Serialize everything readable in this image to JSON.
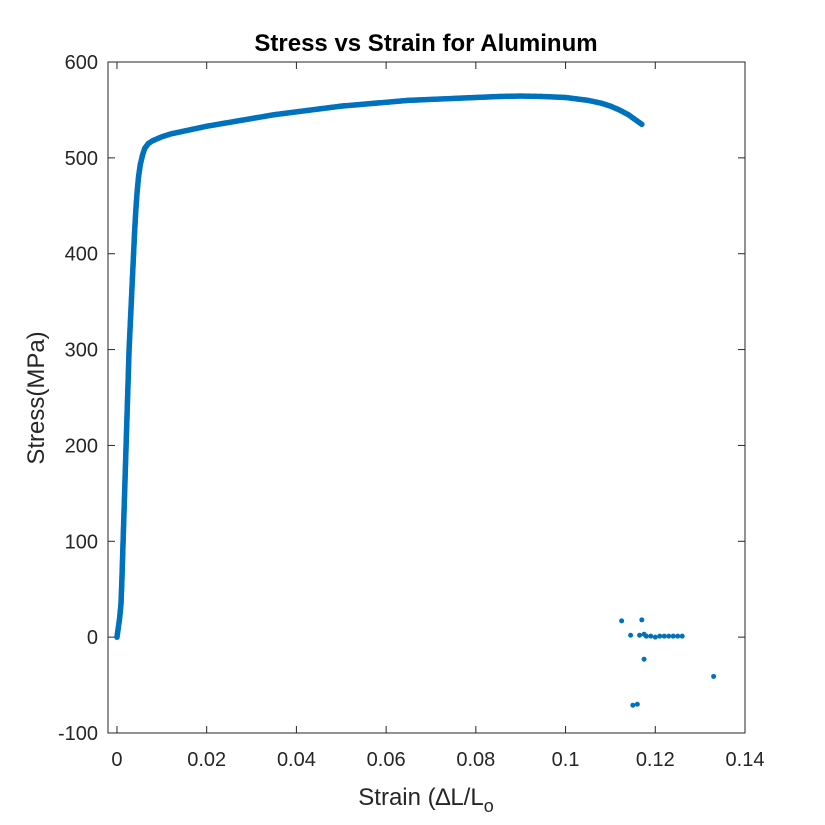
{
  "chart_data": {
    "type": "scatter",
    "title": "Stress vs Strain for Aluminum",
    "xlabel": "Strain (∆L/L",
    "xlabel_subscript": "o",
    "ylabel": "Stress(MPa)",
    "xlim": [
      -0.002,
      0.14
    ],
    "ylim": [
      -100,
      600
    ],
    "xticks": [
      0,
      0.02,
      0.04,
      0.06,
      0.08,
      0.1,
      0.12,
      0.14
    ],
    "xtick_labels": [
      "0",
      "0.02",
      "0.04",
      "0.06",
      "0.08",
      "0.1",
      "0.12",
      "0.14"
    ],
    "yticks": [
      -100,
      0,
      100,
      200,
      300,
      400,
      500,
      600
    ],
    "ytick_labels": [
      "-100",
      "0",
      "100",
      "200",
      "300",
      "400",
      "500",
      "600"
    ],
    "grid": false,
    "legend": "none",
    "color": "#0072BD",
    "series": [
      {
        "points": [
          [
            0.0,
            0
          ],
          [
            0.0003,
            10
          ],
          [
            0.0006,
            20
          ],
          [
            0.0009,
            35
          ],
          [
            0.0011,
            60
          ],
          [
            0.0013,
            90
          ],
          [
            0.0015,
            120
          ],
          [
            0.0017,
            150
          ],
          [
            0.0019,
            180
          ],
          [
            0.0021,
            210
          ],
          [
            0.0023,
            240
          ],
          [
            0.0025,
            270
          ],
          [
            0.0027,
            300
          ],
          [
            0.003,
            330
          ],
          [
            0.0033,
            360
          ],
          [
            0.0036,
            390
          ],
          [
            0.0039,
            420
          ],
          [
            0.0042,
            445
          ],
          [
            0.0045,
            465
          ],
          [
            0.0048,
            480
          ],
          [
            0.0052,
            493
          ],
          [
            0.0057,
            503
          ],
          [
            0.0062,
            510
          ],
          [
            0.007,
            515
          ],
          [
            0.008,
            518
          ],
          [
            0.009,
            520
          ],
          [
            0.01,
            522
          ],
          [
            0.012,
            525
          ],
          [
            0.015,
            528
          ],
          [
            0.02,
            533
          ],
          [
            0.025,
            537
          ],
          [
            0.03,
            541
          ],
          [
            0.035,
            545
          ],
          [
            0.04,
            548
          ],
          [
            0.045,
            551
          ],
          [
            0.05,
            554
          ],
          [
            0.055,
            556
          ],
          [
            0.06,
            558
          ],
          [
            0.065,
            560
          ],
          [
            0.07,
            561
          ],
          [
            0.075,
            562
          ],
          [
            0.08,
            563
          ],
          [
            0.085,
            564
          ],
          [
            0.09,
            564.5
          ],
          [
            0.095,
            564
          ],
          [
            0.1,
            563
          ],
          [
            0.105,
            560
          ],
          [
            0.108,
            557
          ],
          [
            0.11,
            554
          ],
          [
            0.112,
            550
          ],
          [
            0.114,
            545
          ],
          [
            0.1155,
            540
          ],
          [
            0.117,
            535
          ]
        ],
        "scattered": [
          [
            0.1125,
            17
          ],
          [
            0.1145,
            2
          ],
          [
            0.1165,
            2
          ],
          [
            0.117,
            18
          ],
          [
            0.1175,
            3
          ],
          [
            0.1175,
            -23
          ],
          [
            0.118,
            1
          ],
          [
            0.119,
            1
          ],
          [
            0.12,
            0
          ],
          [
            0.121,
            1
          ],
          [
            0.122,
            1
          ],
          [
            0.123,
            1
          ],
          [
            0.124,
            1
          ],
          [
            0.125,
            1
          ],
          [
            0.126,
            1
          ],
          [
            0.115,
            -71
          ],
          [
            0.116,
            -70
          ],
          [
            0.133,
            -41
          ]
        ]
      }
    ]
  }
}
